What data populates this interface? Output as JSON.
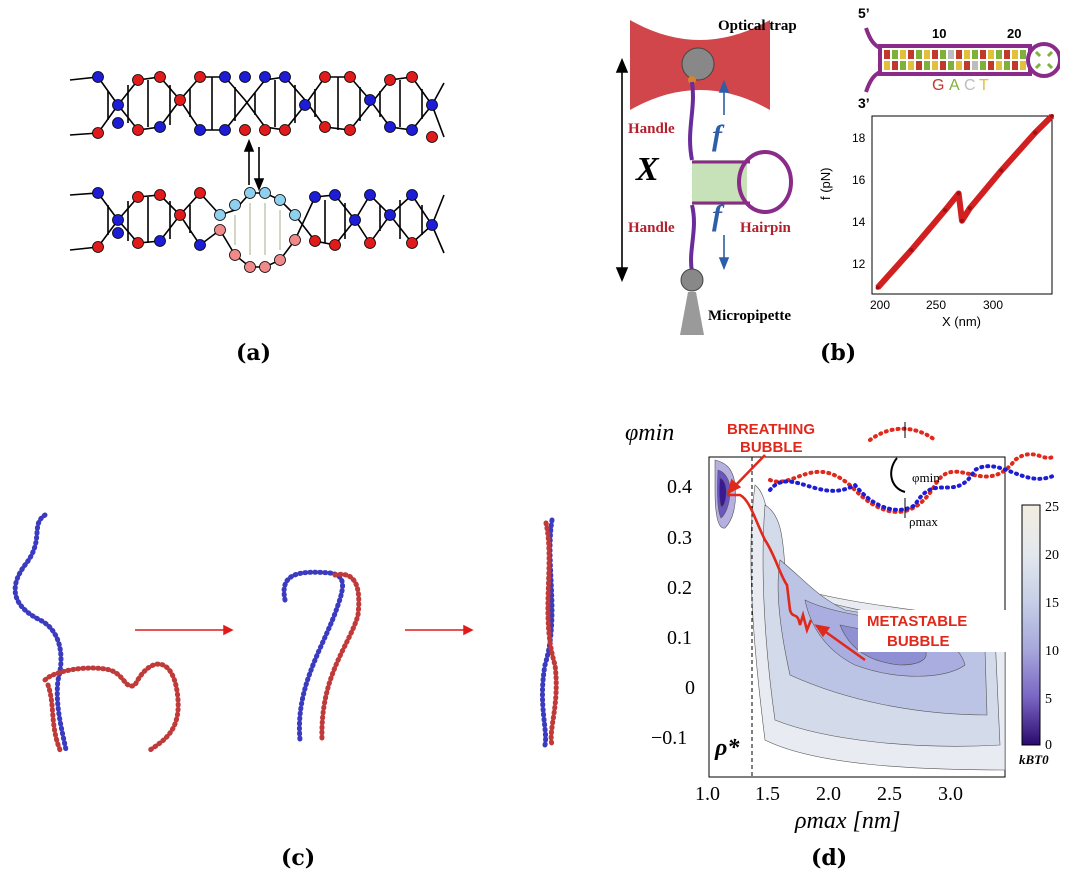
{
  "captions": {
    "a": "(a)",
    "b": "(b)",
    "c": "(c)",
    "d": "(d)"
  },
  "panel_b": {
    "optical_trap": "Optical trap",
    "micropipette": "Micropipette",
    "handle_top": "Handle",
    "handle_bottom": "Handle",
    "hairpin": "Hairpin",
    "force_top": "f",
    "force_bottom": "f",
    "extension_symbol": "X",
    "prime5": "5’",
    "prime3": "3’",
    "seq_mark_10": "10",
    "seq_mark_20": "20",
    "legend_g": "G",
    "legend_a": "A",
    "legend_c": "C",
    "legend_t": "T",
    "colors": {
      "G": "#c0392b",
      "A": "#7fb13a",
      "C": "#bdbdbd",
      "T": "#e2c03b"
    },
    "inset_chart": {
      "ylabel": "f (pN)",
      "xlabel": "X (nm)",
      "yticks": [
        "18",
        "16",
        "14",
        "12"
      ],
      "xticks": [
        "200",
        "250",
        "300"
      ]
    }
  },
  "panel_d": {
    "ylabel": "φmin",
    "xlabel": "ρmax [nm]",
    "breathing_line1": "BREATHING",
    "breathing_line2": "BUBBLE",
    "metastable_line1": "METASTABLE",
    "metastable_line2": "BUBBLE",
    "rho_star": "ρ*",
    "phi_min_label": "φmin",
    "rho_max_label": "ρmax",
    "colorbar_unit": "kBT0",
    "colorbar_ticks": [
      "25",
      "20",
      "15",
      "10",
      "5",
      "0"
    ],
    "yticks": [
      "0.4",
      "0.3",
      "0.2",
      "0.1",
      "0",
      "−0.1"
    ],
    "xticks": [
      "1.0",
      "1.5",
      "2.0",
      "2.5",
      "3.0"
    ]
  },
  "chart_data": {
    "type": "line",
    "title": "",
    "xlabel": "X (nm)",
    "ylabel": "f (pN)",
    "xlim": [
      185,
      345
    ],
    "ylim": [
      10.5,
      19
    ],
    "x": [
      190,
      220,
      250,
      262,
      265,
      272,
      300,
      330,
      345
    ],
    "series": [
      {
        "values": [
          10.8,
          12.6,
          14.5,
          15.3,
          14.0,
          14.6,
          16.4,
          18.2,
          19.0
        ]
      }
    ]
  }
}
